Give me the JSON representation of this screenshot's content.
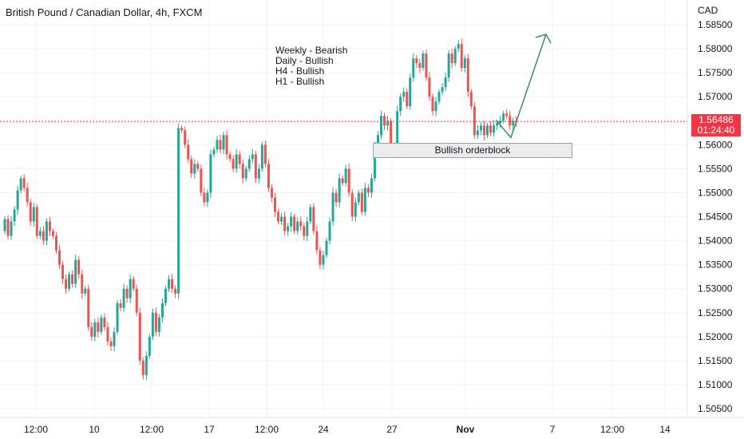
{
  "header": {
    "title": "British Pound / Canadian Dollar, 4h, FXCM"
  },
  "annotations": {
    "lines": [
      "Weekly - Bearish",
      "Daily - Bullish",
      "H4 - Bullish",
      "H1 - Bullish"
    ]
  },
  "orderblock": {
    "label": "Bullish orderblock",
    "price_top": 1.5603,
    "price_bottom": 1.5573
  },
  "price_axis": {
    "currency": "CAD",
    "labels": [
      "1.58500",
      "1.58000",
      "1.57500",
      "1.57000",
      "1.56000",
      "1.55500",
      "1.55000",
      "1.54500",
      "1.54000",
      "1.53500",
      "1.53000",
      "1.52500",
      "1.52000",
      "1.51500",
      "1.51000",
      "1.50500"
    ]
  },
  "current_price": {
    "value": "1.56486",
    "countdown": "01:24:40",
    "color": "#f23645"
  },
  "time_axis": {
    "labels": [
      "12:00",
      "10",
      "12:00",
      "17",
      "12:00",
      "24",
      "27",
      "Nov",
      "7",
      "12:00",
      "14"
    ],
    "bold_label": "Nov"
  },
  "colors": {
    "up": "#26a69a",
    "down": "#ef5350",
    "arrow": "#3d8b6e",
    "current_line": "#f23645"
  },
  "chart_data": {
    "type": "candlestick",
    "title": "British Pound / Canadian Dollar, 4h, FXCM",
    "y_unit": "CAD",
    "ylim": [
      1.5035,
      1.5872
    ],
    "grid": true,
    "closes_approx": [
      1.5445,
      1.541,
      1.544,
      1.5465,
      1.5505,
      1.553,
      1.551,
      1.548,
      1.544,
      1.547,
      1.541,
      1.542,
      1.54,
      1.544,
      1.542,
      1.541,
      1.538,
      1.535,
      1.532,
      1.53,
      1.533,
      1.531,
      1.536,
      1.533,
      1.529,
      1.53,
      1.522,
      1.52,
      1.523,
      1.521,
      1.524,
      1.522,
      1.519,
      1.518,
      1.521,
      1.527,
      1.526,
      1.53,
      1.528,
      1.532,
      1.53,
      1.525,
      1.515,
      1.512,
      1.516,
      1.52,
      1.525,
      1.521,
      1.524,
      1.527,
      1.53,
      1.532,
      1.53,
      1.529,
      1.5635,
      1.563,
      1.56,
      1.557,
      1.554,
      1.556,
      1.555,
      1.55,
      1.548,
      1.55,
      1.558,
      1.559,
      1.561,
      1.559,
      1.562,
      1.558,
      1.557,
      1.555,
      1.558,
      1.556,
      1.553,
      1.555,
      1.557,
      1.558,
      1.553,
      1.555,
      1.56,
      1.556,
      1.551,
      1.549,
      1.546,
      1.544,
      1.545,
      1.542,
      1.543,
      1.545,
      1.542,
      1.544,
      1.543,
      1.541,
      1.544,
      1.547,
      1.542,
      1.538,
      1.535,
      1.537,
      1.54,
      1.544,
      1.55,
      1.548,
      1.553,
      1.552,
      1.555,
      1.55,
      1.545,
      1.548,
      1.55,
      1.546,
      1.551,
      1.55,
      1.553,
      1.56,
      1.562,
      1.566,
      1.564,
      1.565,
      1.558,
      1.559,
      1.567,
      1.57,
      1.571,
      1.568,
      1.574,
      1.578,
      1.577,
      1.576,
      1.579,
      1.574,
      1.57,
      1.567,
      1.569,
      1.571,
      1.572,
      1.574,
      1.579,
      1.577,
      1.58,
      1.581,
      1.576,
      1.578,
      1.571,
      1.568,
      1.562,
      1.563,
      1.564,
      1.562,
      1.564,
      1.5625,
      1.564,
      1.5645,
      1.565,
      1.5665,
      1.566,
      1.564,
      1.565,
      1.5648
    ],
    "projection": {
      "from_price": 1.565,
      "low_price": 1.5615,
      "target_price": 1.583
    }
  }
}
